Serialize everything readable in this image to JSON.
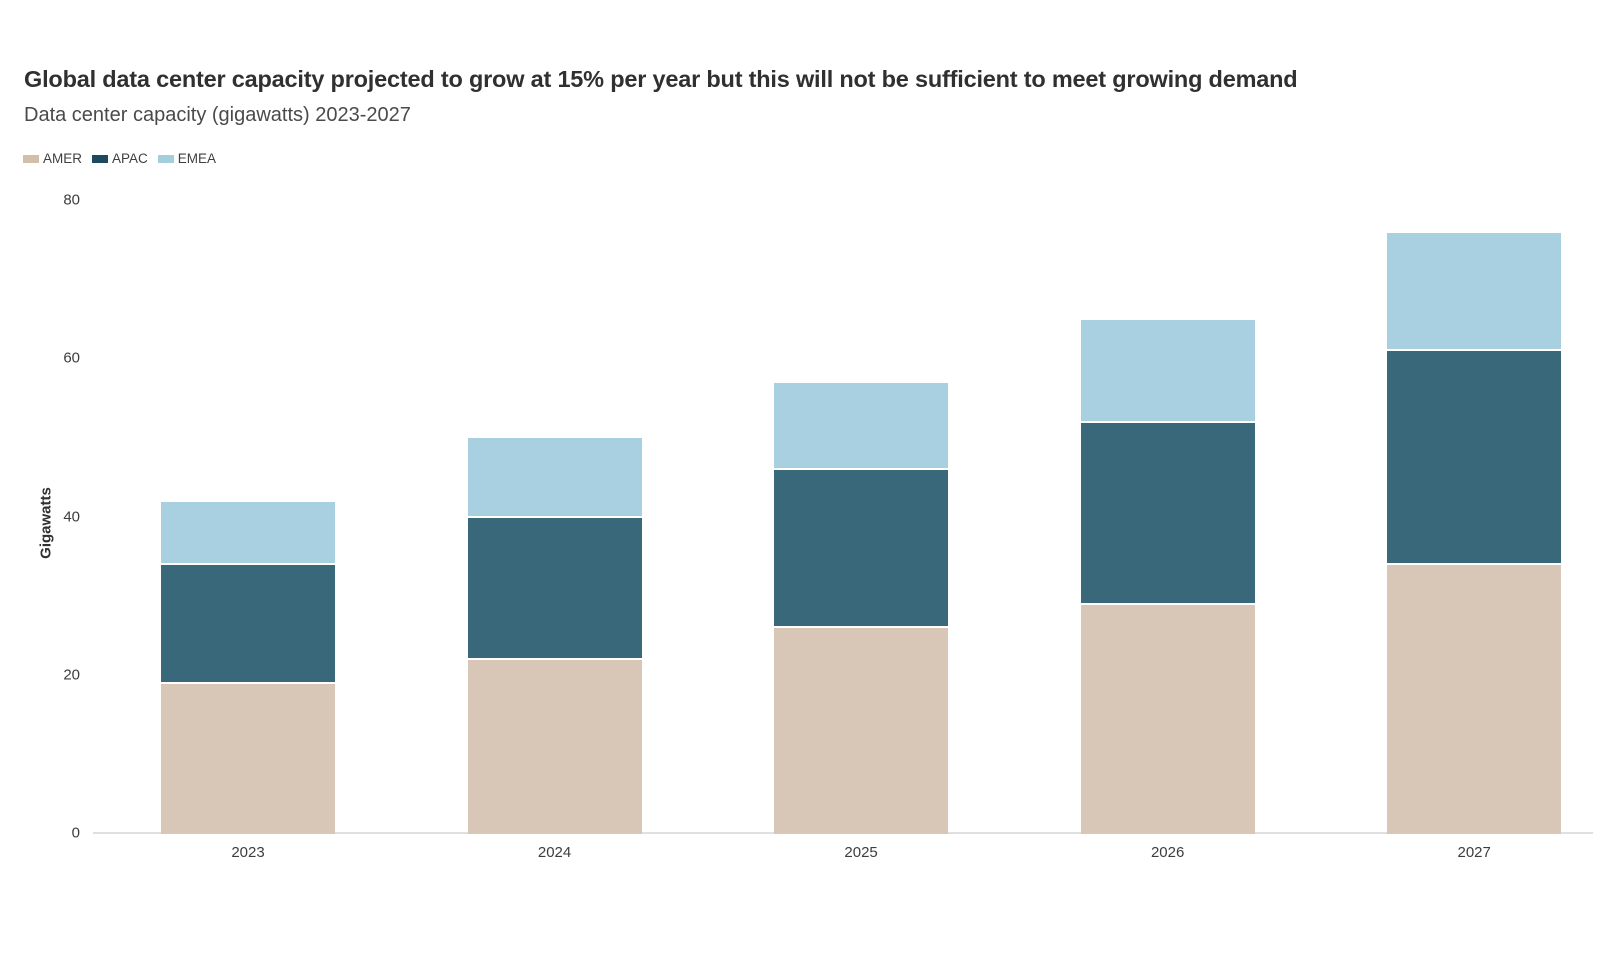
{
  "chart_data": {
    "type": "bar",
    "stacked": true,
    "title": "Global data center capacity projected to grow at 15% per year but this will not be sufficient to meet growing demand",
    "subtitle": "Data center capacity (gigawatts) 2023-2027",
    "categories": [
      "2023",
      "2024",
      "2025",
      "2026",
      "2027"
    ],
    "series": [
      {
        "name": "AMER",
        "color": "#d8c6b6",
        "legend_color": "#d2bfa9",
        "values": [
          19,
          22,
          26,
          29,
          34
        ]
      },
      {
        "name": "APAC",
        "color": "#39687a",
        "legend_color": "#1d4b5e",
        "values": [
          15,
          18,
          20,
          23,
          27
        ]
      },
      {
        "name": "EMEA",
        "color": "#a9d0e0",
        "legend_color": "#a5cedd",
        "values": [
          8,
          10,
          11,
          13,
          15
        ]
      }
    ],
    "totals": [
      42,
      50,
      57,
      65,
      76
    ],
    "ylabel": "Gigawatts",
    "ylim": [
      0,
      80
    ],
    "yticks": [
      0,
      20,
      40,
      60,
      80
    ],
    "grid": false,
    "legend_position": "top-left"
  },
  "colors": {
    "background": "#ffffff",
    "title_text": "#303030",
    "subtitle_text": "#4a4a4a",
    "axis_text": "#3d3d3d",
    "axis_line": "#e0e0e0"
  }
}
